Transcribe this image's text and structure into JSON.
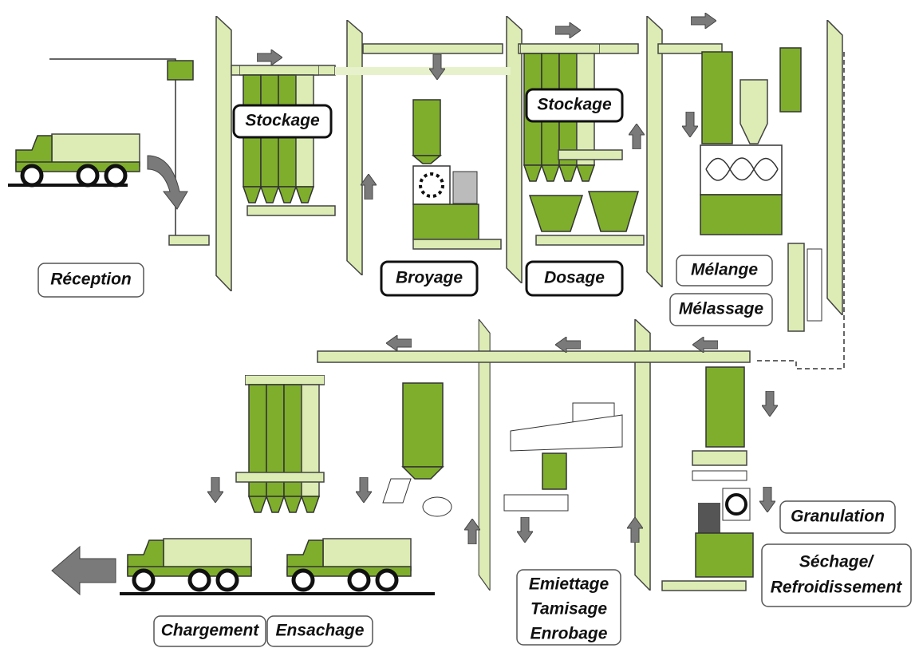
{
  "nodes": [
    {
      "lines": [
        "Réception"
      ]
    },
    {
      "lines": [
        "Stockage"
      ]
    },
    {
      "lines": [
        "Broyage"
      ]
    },
    {
      "lines": [
        "Stockage"
      ]
    },
    {
      "lines": [
        "Dosage"
      ]
    },
    {
      "lines": [
        "Mélange"
      ]
    },
    {
      "lines": [
        "Mélassage"
      ]
    },
    {
      "lines": [
        "Granulation"
      ]
    },
    {
      "lines": [
        "Séchage/",
        "Refroidissement"
      ]
    },
    {
      "lines": [
        "Emiettage",
        "Tamisage",
        "Enrobage"
      ]
    },
    {
      "lines": [
        "Chargement"
      ]
    },
    {
      "lines": [
        "Ensachage"
      ]
    }
  ]
}
